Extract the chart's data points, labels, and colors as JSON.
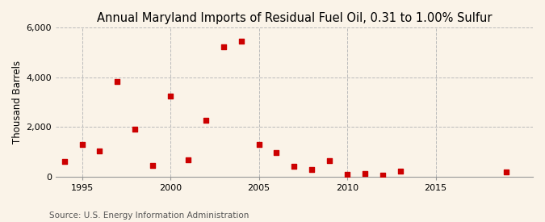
{
  "title": "Annual Maryland Imports of Residual Fuel Oil, 0.31 to 1.00% Sulfur",
  "ylabel": "Thousand Barrels",
  "source": "Source: U.S. Energy Information Administration",
  "background_color": "#faf3e8",
  "plot_background_color": "#faf3e8",
  "marker_color": "#cc0000",
  "years": [
    1994,
    1995,
    1996,
    1997,
    1998,
    1999,
    2000,
    2001,
    2002,
    2003,
    2004,
    2005,
    2006,
    2007,
    2008,
    2009,
    2010,
    2011,
    2012,
    2013,
    2019
  ],
  "values": [
    620,
    1300,
    1050,
    3820,
    1920,
    450,
    3230,
    680,
    2280,
    5220,
    5440,
    1290,
    960,
    420,
    290,
    640,
    110,
    140,
    60,
    210,
    200
  ],
  "ylim": [
    0,
    6000
  ],
  "xlim": [
    1993.5,
    2020.5
  ],
  "yticks": [
    0,
    2000,
    4000,
    6000
  ],
  "xticks": [
    1995,
    2000,
    2005,
    2010,
    2015
  ],
  "grid_color": "#bbbbbb",
  "grid_style": "--",
  "title_fontsize": 10.5,
  "label_fontsize": 8.5,
  "tick_fontsize": 8,
  "source_fontsize": 7.5,
  "marker_size": 15
}
